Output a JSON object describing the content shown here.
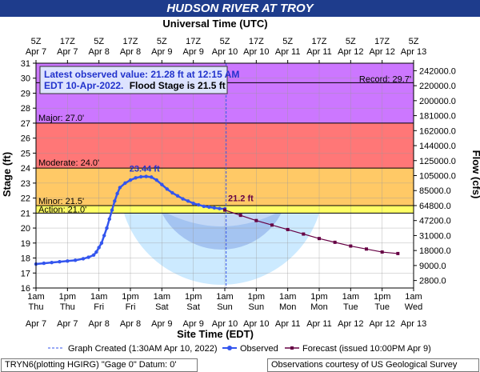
{
  "title": "HUDSON RIVER AT TROY",
  "top_axis_title": "Universal Time (UTC)",
  "bottom_axis_title": "Site Time (EDT)",
  "left_axis_title": "Stage (ft)",
  "right_axis_title": "Flow (cfs)",
  "info_box": {
    "line1": "Latest observed value: 21.28 ft at 12:15 AM",
    "line2_date": "EDT 10-Apr-2022.",
    "line2_flood": "Flood Stage is 21.5 ft"
  },
  "thresholds": {
    "record": {
      "label": "Record: 29.7'",
      "value": 29.7
    },
    "major": {
      "label": "Major: 27.0'",
      "value": 27.0,
      "color": "#cc77ff"
    },
    "moderate": {
      "label": "Moderate: 24.0'",
      "value": 24.0,
      "color": "#ff7777"
    },
    "minor": {
      "label": "Minor: 21.5'",
      "value": 21.5,
      "color": "#ffc966"
    },
    "action": {
      "label": "Action: 21.0'",
      "value": 21.0,
      "color": "#ffff66"
    }
  },
  "annotations": {
    "crest": "23.44 ft",
    "latest": "21.2 ft"
  },
  "legend": {
    "graph_created": "Graph Created (1:30AM Apr 10, 2022)",
    "observed": "Observed",
    "forecast": "Forecast (issued 10:00PM Apr 9)"
  },
  "footer": {
    "left": "TRYN6(plotting HGIRG) \"Gage 0\" Datum: 0'",
    "right": "Observations courtesy of US Geological Survey"
  },
  "colors": {
    "title_bg": "#1e3c8c",
    "observed": "#3355ee",
    "forecast": "#660044"
  },
  "chart_data": {
    "type": "line",
    "y_left": {
      "label": "Stage (ft)",
      "range": [
        16,
        31
      ],
      "ticks": [
        16,
        17,
        18,
        19,
        20,
        21,
        22,
        23,
        24,
        25,
        26,
        27,
        28,
        29,
        30,
        31
      ]
    },
    "y_right": {
      "label": "Flow (cfs)",
      "ticks": [
        {
          "stage": 16.5,
          "label": "2800.0"
        },
        {
          "stage": 17.5,
          "label": "9000.0"
        },
        {
          "stage": 18.5,
          "label": "18000.0"
        },
        {
          "stage": 19.5,
          "label": "31000.0"
        },
        {
          "stage": 20.5,
          "label": "47200.0"
        },
        {
          "stage": 21.5,
          "label": "64800.0"
        },
        {
          "stage": 22.5,
          "label": "85000.0"
        },
        {
          "stage": 23.5,
          "label": "105000.0"
        },
        {
          "stage": 24.5,
          "label": "125000.0"
        },
        {
          "stage": 25.5,
          "label": "144000.0"
        },
        {
          "stage": 26.5,
          "label": "162000.0"
        },
        {
          "stage": 27.5,
          "label": "181000.0"
        },
        {
          "stage": 28.5,
          "label": "200000.0"
        },
        {
          "stage": 29.5,
          "label": "220000.0"
        },
        {
          "stage": 30.5,
          "label": "242000.0"
        }
      ]
    },
    "x_range_hours": [
      0,
      144
    ],
    "x_bottom_ticks": [
      {
        "h": 0,
        "time": "1am",
        "day": "Thu",
        "date": "Apr 7"
      },
      {
        "h": 12,
        "time": "1pm",
        "day": "Thu",
        "date": "Apr 7"
      },
      {
        "h": 24,
        "time": "1am",
        "day": "Fri",
        "date": "Apr 8"
      },
      {
        "h": 36,
        "time": "1pm",
        "day": "Fri",
        "date": "Apr 8"
      },
      {
        "h": 48,
        "time": "1am",
        "day": "Sat",
        "date": "Apr 9"
      },
      {
        "h": 60,
        "time": "1pm",
        "day": "Sat",
        "date": "Apr 9"
      },
      {
        "h": 72,
        "time": "1am",
        "day": "Sun",
        "date": "Apr 10"
      },
      {
        "h": 84,
        "time": "1pm",
        "day": "Sun",
        "date": "Apr 10"
      },
      {
        "h": 96,
        "time": "1am",
        "day": "Mon",
        "date": "Apr 11"
      },
      {
        "h": 108,
        "time": "1pm",
        "day": "Mon",
        "date": "Apr 11"
      },
      {
        "h": 120,
        "time": "1am",
        "day": "Tue",
        "date": "Apr 12"
      },
      {
        "h": 132,
        "time": "1pm",
        "day": "Tue",
        "date": "Apr 12"
      },
      {
        "h": 144,
        "time": "1am",
        "day": "Wed",
        "date": "Apr 13"
      }
    ],
    "x_top_ticks": [
      {
        "h": 0,
        "time": "5Z",
        "date": "Apr 7"
      },
      {
        "h": 12,
        "time": "17Z",
        "date": "Apr 7"
      },
      {
        "h": 24,
        "time": "5Z",
        "date": "Apr 8"
      },
      {
        "h": 36,
        "time": "17Z",
        "date": "Apr 8"
      },
      {
        "h": 48,
        "time": "5Z",
        "date": "Apr 9"
      },
      {
        "h": 60,
        "time": "17Z",
        "date": "Apr 9"
      },
      {
        "h": 72,
        "time": "5Z",
        "date": "Apr 10"
      },
      {
        "h": 84,
        "time": "17Z",
        "date": "Apr 10"
      },
      {
        "h": 96,
        "time": "5Z",
        "date": "Apr 11"
      },
      {
        "h": 108,
        "time": "17Z",
        "date": "Apr 11"
      },
      {
        "h": 120,
        "time": "5Z",
        "date": "Apr 12"
      },
      {
        "h": 132,
        "time": "17Z",
        "date": "Apr 12"
      },
      {
        "h": 144,
        "time": "5Z",
        "date": "Apr 13"
      }
    ],
    "graph_created_h": 72.5,
    "series": [
      {
        "name": "Observed",
        "color": "#3355ee",
        "points": [
          [
            0,
            17.6
          ],
          [
            3,
            17.65
          ],
          [
            6,
            17.7
          ],
          [
            9,
            17.75
          ],
          [
            12,
            17.8
          ],
          [
            15,
            17.85
          ],
          [
            18,
            17.95
          ],
          [
            20,
            18.05
          ],
          [
            22,
            18.2
          ],
          [
            23,
            18.4
          ],
          [
            24,
            18.7
          ],
          [
            25,
            19.0
          ],
          [
            26,
            19.5
          ],
          [
            27,
            20.0
          ],
          [
            28,
            20.6
          ],
          [
            29,
            21.2
          ],
          [
            30,
            21.8
          ],
          [
            31,
            22.3
          ],
          [
            32,
            22.7
          ],
          [
            34,
            23.0
          ],
          [
            36,
            23.2
          ],
          [
            38,
            23.35
          ],
          [
            40,
            23.42
          ],
          [
            42,
            23.44
          ],
          [
            44,
            23.4
          ],
          [
            46,
            23.2
          ],
          [
            48,
            22.9
          ],
          [
            50,
            22.6
          ],
          [
            52,
            22.35
          ],
          [
            54,
            22.15
          ],
          [
            56,
            21.95
          ],
          [
            58,
            21.8
          ],
          [
            60,
            21.65
          ],
          [
            62,
            21.55
          ],
          [
            64,
            21.45
          ],
          [
            66,
            21.4
          ],
          [
            68,
            21.35
          ],
          [
            70,
            21.3
          ],
          [
            72,
            21.28
          ]
        ]
      },
      {
        "name": "Forecast (issued 10:00PM Apr 9)",
        "color": "#660044",
        "points": [
          [
            72,
            21.2
          ],
          [
            78,
            20.85
          ],
          [
            84,
            20.5
          ],
          [
            90,
            20.2
          ],
          [
            96,
            19.9
          ],
          [
            102,
            19.6
          ],
          [
            108,
            19.3
          ],
          [
            114,
            19.05
          ],
          [
            120,
            18.8
          ],
          [
            126,
            18.6
          ],
          [
            132,
            18.4
          ],
          [
            138,
            18.3
          ]
        ]
      }
    ],
    "annotation_points": {
      "crest": [
        42,
        23.44
      ],
      "latest": [
        72,
        21.2
      ]
    }
  }
}
